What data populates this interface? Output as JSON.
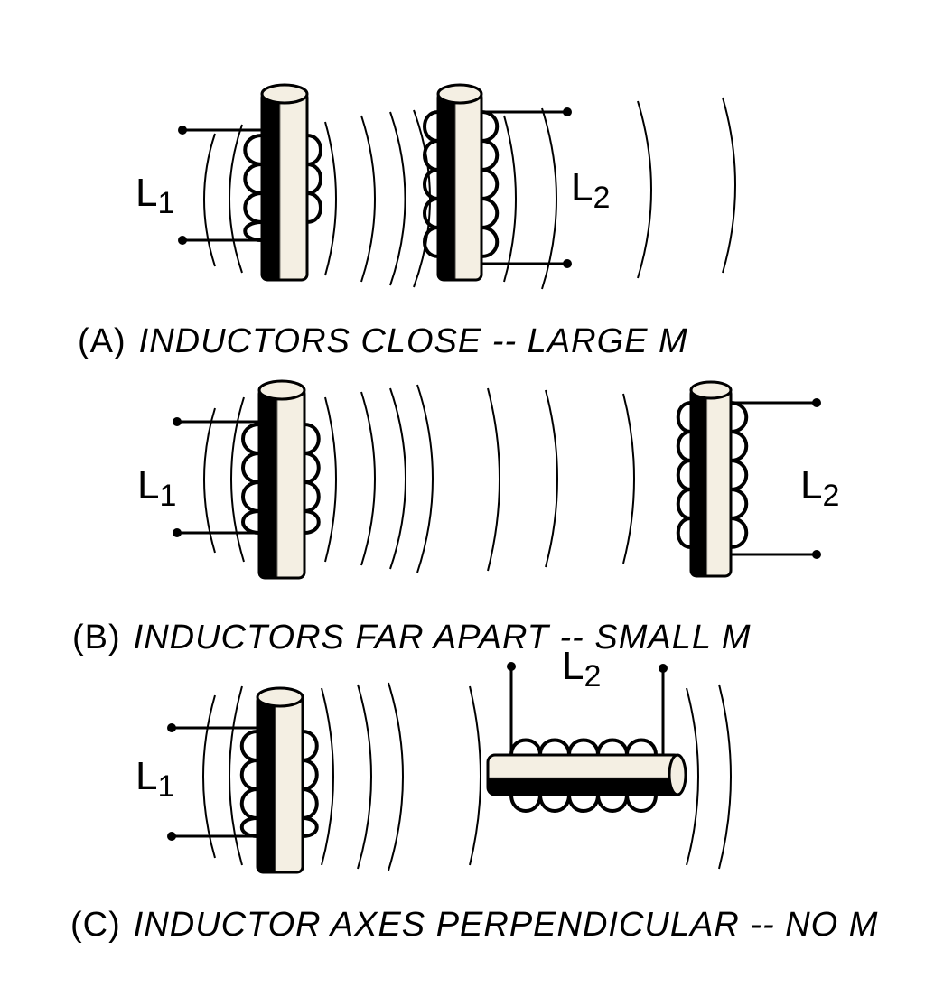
{
  "panels": [
    {
      "tag": "(A)",
      "caption": "INDUCTORS CLOSE -- LARGE M",
      "left_inductor": {
        "letter": "L",
        "subscript": "1"
      },
      "right_inductor": {
        "letter": "L",
        "subscript": "2"
      }
    },
    {
      "tag": "(B)",
      "caption": "INDUCTORS FAR APART -- SMALL M",
      "left_inductor": {
        "letter": "L",
        "subscript": "1"
      },
      "right_inductor": {
        "letter": "L",
        "subscript": "2"
      }
    },
    {
      "tag": "(C)",
      "caption": "INDUCTOR AXES PERPENDICULAR -- NO M",
      "left_inductor": {
        "letter": "L",
        "subscript": "1"
      },
      "right_inductor": {
        "letter": "L",
        "subscript": "2"
      }
    }
  ],
  "colors": {
    "ink": "#000000",
    "paper": "#ffffff",
    "core": "#f4efe3"
  }
}
